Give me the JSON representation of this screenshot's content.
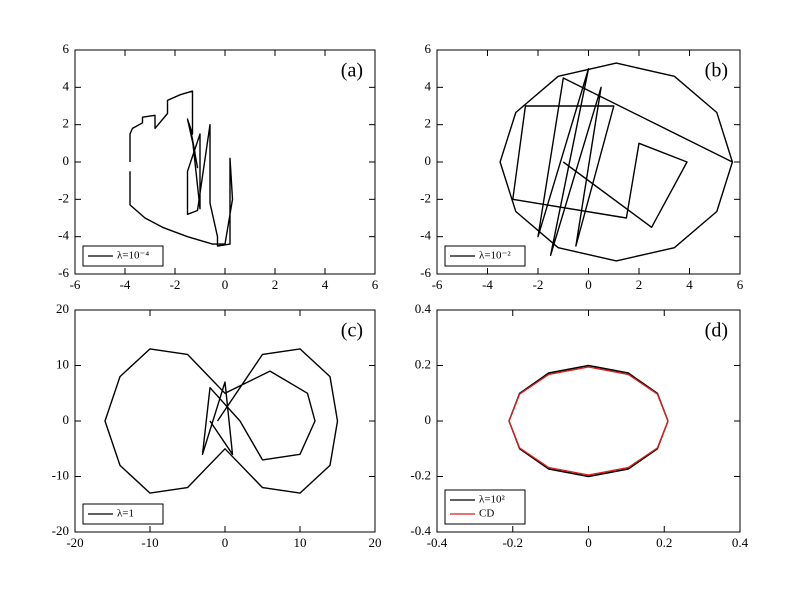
{
  "chart_data": [
    {
      "type": "line",
      "annotation": "(a)",
      "legend": "lower left",
      "x": [
        -3.8,
        -3.8,
        -3.7,
        -3.3,
        -3.3,
        -2.8,
        -2.8,
        -2.3,
        -2.3,
        -1.8,
        -1.3,
        -1.3,
        -1.5,
        -1.2,
        -1.4,
        -1.1,
        -1.3,
        -1.0,
        -1.0,
        -1.5,
        -1.5,
        -1.1,
        -0.6,
        -0.6,
        -0.3,
        -0.3,
        0.2,
        0.2,
        0.3,
        0.0,
        -0.5,
        -1.5,
        -2.5,
        -3.2,
        -3.8,
        -3.8
      ],
      "series": [
        {
          "name": "λ=10⁻⁴",
          "color": "#000000",
          "values": [
            0.0,
            1.5,
            1.8,
            2.1,
            2.4,
            2.5,
            1.8,
            2.6,
            3.3,
            3.6,
            3.8,
            1.5,
            2.3,
            0.5,
            1.9,
            -0.3,
            1.2,
            -2.5,
            1.5,
            -0.5,
            -2.8,
            -2.6,
            2.0,
            -2.2,
            -4.0,
            -4.5,
            -4.4,
            0.2,
            -2.0,
            -4.4,
            -4.4,
            -4.0,
            -3.5,
            -3.0,
            -2.3,
            -0.5
          ]
        }
      ],
      "xlim": [
        -6,
        6
      ],
      "ylim": [
        -6,
        6
      ],
      "xticks": [
        -6,
        -4,
        -2,
        0,
        2,
        4,
        6
      ],
      "yticks": [
        -6,
        -4,
        -2,
        0,
        2,
        4,
        6
      ]
    },
    {
      "type": "line",
      "annotation": "(b)",
      "legend": "lower left",
      "x": [
        5.7,
        5.08,
        3.4,
        1.1,
        -1.2,
        -2.88,
        -3.5,
        -2.88,
        -1.2,
        1.1,
        3.4,
        5.08,
        5.7,
        -1,
        -2,
        0,
        -1.5,
        0.5,
        -0.5,
        1,
        -2.5,
        -3,
        1.5,
        2,
        3.9,
        2.5,
        -1
      ],
      "series": [
        {
          "name": "λ=10⁻²",
          "color": "#000000",
          "values": [
            0,
            2.65,
            4.59,
            5.3,
            4.59,
            2.65,
            0,
            -2.65,
            -4.59,
            -5.3,
            -4.59,
            -2.65,
            0,
            4.5,
            -4,
            5,
            -5,
            4,
            -4.5,
            3,
            3,
            -2,
            -3,
            1,
            0,
            -3.5,
            0
          ]
        }
      ],
      "xlim": [
        -6,
        6
      ],
      "ylim": [
        -6,
        6
      ],
      "xticks": [
        -6,
        -4,
        -2,
        0,
        2,
        4,
        6
      ],
      "yticks": [
        -6,
        -4,
        -2,
        0,
        2,
        4,
        6
      ]
    },
    {
      "type": "line",
      "annotation": "(c)",
      "legend": "lower left",
      "x": [
        -1,
        5,
        10,
        14,
        15,
        14,
        10,
        5,
        0,
        -5,
        -10,
        -14,
        -16,
        -14,
        -10,
        -5,
        0,
        6,
        11,
        12,
        10,
        5,
        2,
        -2,
        -3,
        0,
        1,
        -2
      ],
      "series": [
        {
          "name": "λ=1",
          "color": "#000000",
          "values": [
            0,
            12,
            13,
            8,
            0,
            -8,
            -13,
            -12,
            -5,
            -12,
            -13,
            -8,
            0,
            8,
            13,
            12,
            5,
            9,
            5,
            0,
            -6,
            -7,
            0,
            6,
            -6,
            7,
            -6,
            0
          ]
        }
      ],
      "xlim": [
        -20,
        20
      ],
      "ylim": [
        -20,
        20
      ],
      "xticks": [
        -20,
        -10,
        0,
        10,
        20
      ],
      "yticks": [
        -20,
        -10,
        0,
        10,
        20
      ]
    },
    {
      "type": "line",
      "annotation": "(d)",
      "legend": "lower left",
      "x": [
        0.21,
        0.182,
        0.105,
        0,
        -0.105,
        -0.182,
        -0.21,
        -0.182,
        -0.105,
        0,
        0.105,
        0.182,
        0.21
      ],
      "series": [
        {
          "name": "λ=10²",
          "color": "#000000",
          "values": [
            0,
            0.1,
            0.173,
            0.2,
            0.173,
            0.1,
            0,
            -0.1,
            -0.173,
            -0.2,
            -0.173,
            -0.1,
            0
          ]
        },
        {
          "name": "CD",
          "color": "#d62020",
          "values": [
            0,
            0.097,
            0.168,
            0.195,
            0.168,
            0.097,
            0,
            -0.097,
            -0.168,
            -0.195,
            -0.168,
            -0.097,
            0
          ]
        }
      ],
      "xlim": [
        -0.4,
        0.4
      ],
      "ylim": [
        -0.4,
        0.4
      ],
      "xticks": [
        -0.4,
        -0.2,
        0,
        0.2,
        0.4
      ],
      "yticks": [
        -0.4,
        -0.2,
        0,
        0.2,
        0.4
      ]
    }
  ]
}
